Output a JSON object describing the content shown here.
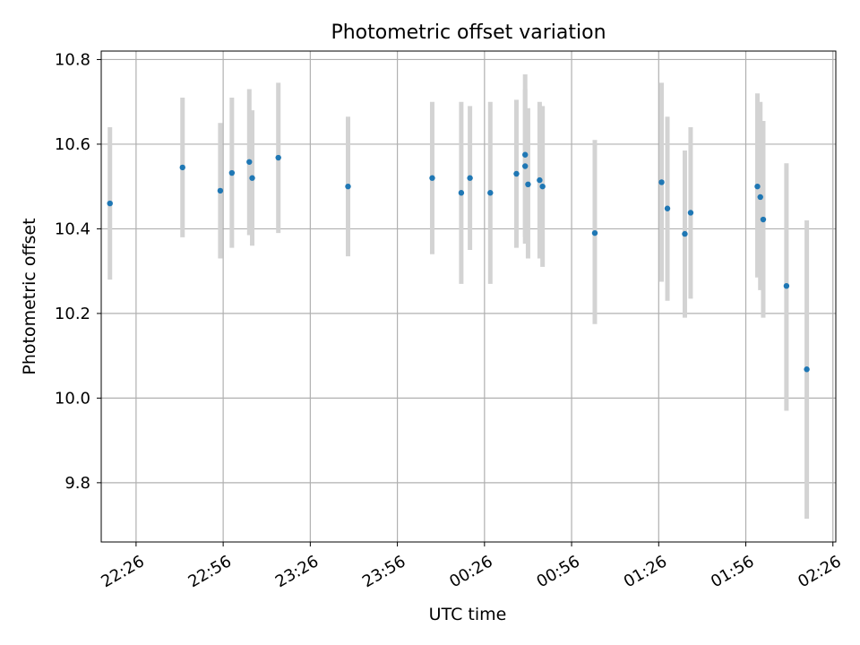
{
  "chart_data": {
    "type": "scatter",
    "title": "Photometric offset variation",
    "xlabel": "UTC time",
    "ylabel": "Photometric offset",
    "x_unit": "UTC HH:MM",
    "xlim": [
      "22:14",
      "02:27"
    ],
    "ylim": [
      9.66,
      10.82
    ],
    "grid": true,
    "x_ticks": [
      "22:26",
      "22:56",
      "23:26",
      "23:56",
      "00:26",
      "00:56",
      "01:26",
      "01:56",
      "02:26"
    ],
    "y_ticks": [
      9.8,
      10.0,
      10.2,
      10.4,
      10.6,
      10.8
    ],
    "colors": {
      "points": "#1f77b4",
      "errorbars": "#d3d3d3",
      "grid": "#b0b0b0"
    },
    "series": [
      {
        "points": [
          {
            "x": "22:17",
            "y": 10.46,
            "lo": 10.28,
            "hi": 10.64
          },
          {
            "x": "22:42",
            "y": 10.545,
            "lo": 10.38,
            "hi": 10.71
          },
          {
            "x": "22:55",
            "y": 10.49,
            "lo": 10.33,
            "hi": 10.65
          },
          {
            "x": "22:59",
            "y": 10.532,
            "lo": 10.355,
            "hi": 10.71
          },
          {
            "x": "23:05",
            "y": 10.558,
            "lo": 10.385,
            "hi": 10.73
          },
          {
            "x": "23:06",
            "y": 10.52,
            "lo": 10.36,
            "hi": 10.68
          },
          {
            "x": "23:15",
            "y": 10.568,
            "lo": 10.39,
            "hi": 10.745
          },
          {
            "x": "23:39",
            "y": 10.5,
            "lo": 10.335,
            "hi": 10.665
          },
          {
            "x": "00:08",
            "y": 10.52,
            "lo": 10.34,
            "hi": 10.7
          },
          {
            "x": "00:18",
            "y": 10.485,
            "lo": 10.27,
            "hi": 10.7
          },
          {
            "x": "00:21",
            "y": 10.52,
            "lo": 10.35,
            "hi": 10.69
          },
          {
            "x": "00:28",
            "y": 10.485,
            "lo": 10.27,
            "hi": 10.7
          },
          {
            "x": "00:37",
            "y": 10.53,
            "lo": 10.355,
            "hi": 10.705
          },
          {
            "x": "00:40",
            "y": 10.548,
            "lo": 10.365,
            "hi": 10.73
          },
          {
            "x": "00:40",
            "y": 10.575,
            "lo": 10.38,
            "hi": 10.765
          },
          {
            "x": "00:41",
            "y": 10.505,
            "lo": 10.33,
            "hi": 10.685
          },
          {
            "x": "00:45",
            "y": 10.515,
            "lo": 10.33,
            "hi": 10.7
          },
          {
            "x": "00:46",
            "y": 10.5,
            "lo": 10.31,
            "hi": 10.69
          },
          {
            "x": "01:04",
            "y": 10.39,
            "lo": 10.175,
            "hi": 10.61
          },
          {
            "x": "01:27",
            "y": 10.51,
            "lo": 10.275,
            "hi": 10.745
          },
          {
            "x": "01:29",
            "y": 10.448,
            "lo": 10.23,
            "hi": 10.665
          },
          {
            "x": "01:35",
            "y": 10.388,
            "lo": 10.19,
            "hi": 10.585
          },
          {
            "x": "01:37",
            "y": 10.438,
            "lo": 10.235,
            "hi": 10.64
          },
          {
            "x": "02:00",
            "y": 10.5,
            "lo": 10.285,
            "hi": 10.72
          },
          {
            "x": "02:01",
            "y": 10.475,
            "lo": 10.255,
            "hi": 10.7
          },
          {
            "x": "02:02",
            "y": 10.422,
            "lo": 10.19,
            "hi": 10.655
          },
          {
            "x": "02:10",
            "y": 10.265,
            "lo": 9.97,
            "hi": 10.555
          },
          {
            "x": "02:17",
            "y": 10.068,
            "lo": 9.715,
            "hi": 10.42
          }
        ]
      }
    ]
  }
}
